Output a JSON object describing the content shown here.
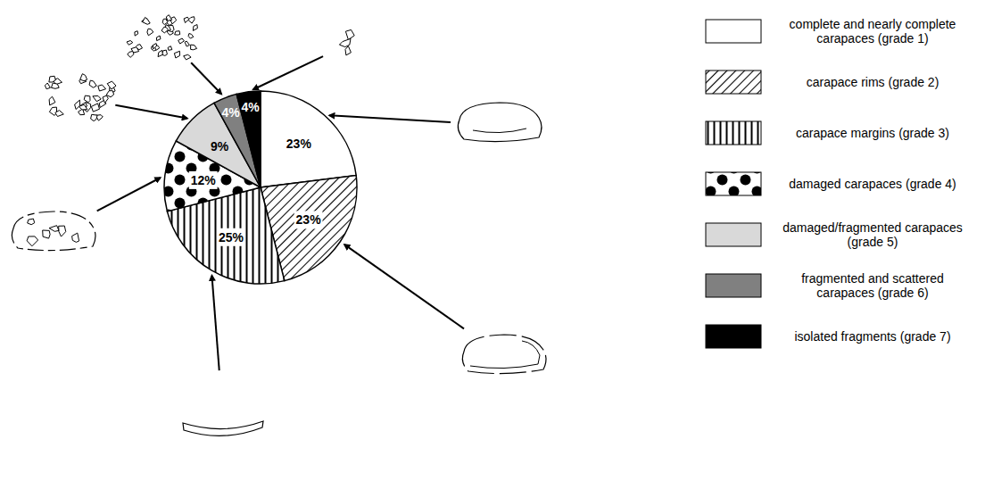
{
  "chart_data": {
    "type": "pie",
    "categories": [
      "complete and nearly complete carapaces (grade 1)",
      "carapace rims (grade 2)",
      "carapace margins (grade 3)",
      "damaged carapaces (grade 4)",
      "damaged/fragmented carapaces (grade 5)",
      "fragmented and scattered carapaces (grade 6)",
      "isolated fragments (grade 7)"
    ],
    "values": [
      23,
      23,
      25,
      12,
      9,
      4,
      4
    ],
    "value_labels": [
      "23%",
      "23%",
      "25%",
      "12%",
      "9%",
      "4%",
      "4%"
    ],
    "data_labels": true,
    "colors": [
      "#ffffff",
      "#ffffff",
      "#ffffff",
      "#ffffff",
      "#d9d9d9",
      "#808080",
      "#000000"
    ],
    "legend": "right"
  }
}
